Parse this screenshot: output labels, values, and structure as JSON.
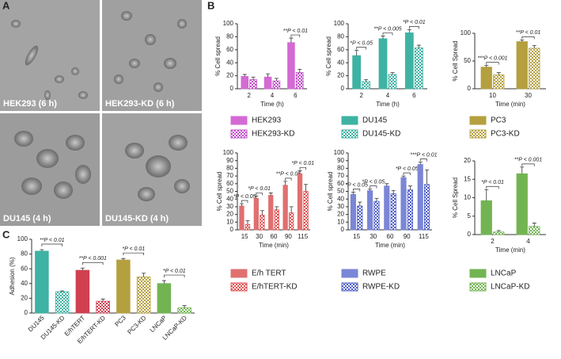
{
  "panel_labels": [
    "A",
    "B",
    "C"
  ],
  "images": [
    {
      "label": "HEK293 (6 h)"
    },
    {
      "label": "HEK293-KD (6 h)"
    },
    {
      "label": "DU145 (4 h)"
    },
    {
      "label": "DU145-KD (4 h)"
    }
  ],
  "chart_data": [
    {
      "type": "bar",
      "xlabel": "Time (h)",
      "ylabel": "% Cell spread",
      "categories": [
        "2",
        "4",
        "6"
      ],
      "series": [
        {
          "name": "HEK293",
          "color": "#d46ad4",
          "hatched": false,
          "values": [
            19,
            18,
            71
          ],
          "errors": [
            3,
            5,
            7
          ]
        },
        {
          "name": "HEK293-KD",
          "color": "#c050c8",
          "hatched": true,
          "values": [
            14,
            12,
            25
          ],
          "errors": [
            4,
            4,
            5
          ]
        }
      ],
      "annotations": [
        null,
        null,
        "**P < 0.01"
      ],
      "ylim": [
        0,
        100
      ],
      "yticks": [
        0,
        20,
        40,
        60,
        80,
        100
      ]
    },
    {
      "type": "bar",
      "xlabel": "Time (h)",
      "ylabel": "% Cell spread",
      "categories": [
        "2",
        "4",
        "6"
      ],
      "series": [
        {
          "name": "DU145",
          "color": "#3fb3a3",
          "hatched": false,
          "values": [
            51,
            77,
            86
          ],
          "errors": [
            8,
            4,
            5
          ]
        },
        {
          "name": "DU145-KD",
          "color": "#3fb3a3",
          "hatched": true,
          "values": [
            11,
            22,
            63
          ],
          "errors": [
            3,
            3,
            4
          ]
        }
      ],
      "annotations": [
        "*P < 0.05",
        "**P < 0.005",
        "*P < 0.01"
      ],
      "ylim": [
        0,
        100
      ],
      "yticks": [
        0,
        20,
        40,
        60,
        80,
        100
      ]
    },
    {
      "type": "bar",
      "xlabel": "Time (min)",
      "ylabel": "% Cell Spread",
      "categories": [
        "10",
        "30"
      ],
      "series": [
        {
          "name": "PC3",
          "color": "#b5a040",
          "hatched": false,
          "values": [
            39,
            85
          ],
          "errors": [
            3,
            3
          ]
        },
        {
          "name": "PC3-KD",
          "color": "#b5a040",
          "hatched": true,
          "values": [
            25,
            73
          ],
          "errors": [
            4,
            5
          ]
        }
      ],
      "annotations": [
        "***P < 0.001",
        "**P < 0.01"
      ],
      "ylim": [
        0,
        100
      ],
      "yticks": [
        0,
        50,
        100
      ]
    },
    {
      "type": "bar",
      "xlabel": "Time (min)",
      "ylabel": "% Cell spread",
      "categories": [
        "15",
        "30",
        "60",
        "90",
        "115"
      ],
      "series": [
        {
          "name": "E/h TERT",
          "color": "#e07070",
          "hatched": false,
          "values": [
            31,
            41,
            45,
            58,
            73
          ],
          "errors": [
            3,
            3,
            3,
            5,
            4
          ]
        },
        {
          "name": "E/hTERT-KD",
          "color": "#e05050",
          "hatched": true,
          "values": [
            7,
            19,
            26,
            22,
            50
          ],
          "errors": [
            5,
            6,
            4,
            8,
            9
          ]
        }
      ],
      "annotations": [
        "*P < 0.05",
        "*P < 0.01",
        null,
        "**P < 0.05",
        "*P < 0.01"
      ],
      "ylim": [
        0,
        100
      ],
      "yticks": [
        0,
        10,
        20,
        30,
        40,
        50,
        60,
        70,
        80,
        90,
        100
      ]
    },
    {
      "type": "bar",
      "xlabel": "Time (min)",
      "ylabel": "% Cell spread",
      "categories": [
        "15",
        "30",
        "60",
        "90",
        "115"
      ],
      "series": [
        {
          "name": "RWPE",
          "color": "#7a86d6",
          "hatched": false,
          "values": [
            46,
            51,
            57,
            68,
            85
          ],
          "errors": [
            3,
            2,
            3,
            2,
            3
          ]
        },
        {
          "name": "RWPE-KD",
          "color": "#5060c8",
          "hatched": true,
          "values": [
            31,
            37,
            47,
            52,
            59
          ],
          "errors": [
            5,
            4,
            4,
            5,
            19
          ]
        }
      ],
      "annotations": [
        "*P < 0.05",
        "*P < 0.05",
        null,
        "*P < 0.05",
        "***P < 0.01"
      ],
      "ylim": [
        0,
        100
      ],
      "yticks": [
        0,
        10,
        20,
        30,
        40,
        50,
        60,
        70,
        80,
        90,
        100
      ]
    },
    {
      "type": "bar",
      "xlabel": "Time (min)",
      "ylabel": "% Cell Spread",
      "categories": [
        "2",
        "4"
      ],
      "series": [
        {
          "name": "LNCaP",
          "color": "#72b452",
          "hatched": false,
          "values": [
            9.2,
            16.5
          ],
          "errors": [
            3,
            1.8
          ]
        },
        {
          "name": "LNCaP-KD",
          "color": "#72b452",
          "hatched": true,
          "values": [
            0.7,
            2.2
          ],
          "errors": [
            0.4,
            0.9
          ]
        }
      ],
      "annotations": [
        "*P < 0.01",
        "**P < 0.001"
      ],
      "ylim": [
        0,
        20
      ],
      "yticks": [
        0,
        5,
        10,
        15,
        20
      ]
    },
    {
      "type": "bar",
      "ylabel": "Adhesion (%)",
      "categories": [
        "DU145",
        "DU145-KD",
        "E/hTERT",
        "E/hTERT-KD",
        "PC3",
        "PC3-KD",
        "LNCaP",
        "LNCaP-KD"
      ],
      "values": [
        84,
        29,
        58,
        16,
        72,
        49,
        40,
        7
      ],
      "errors": [
        2,
        1,
        3,
        3,
        2,
        5,
        4,
        3
      ],
      "colors": [
        "#3fb3a3",
        "#3fb3a3",
        "#d04050",
        "#d04050",
        "#b5a040",
        "#b5a040",
        "#72b452",
        "#72b452"
      ],
      "hatched": [
        false,
        true,
        false,
        true,
        false,
        true,
        false,
        true
      ],
      "annotations": [
        "**P < 0.01",
        null,
        "**P < 0.001",
        null,
        "*P < 0.01",
        null,
        "*P < 0.01",
        null
      ],
      "ylim": [
        0,
        100
      ],
      "yticks": [
        0,
        20,
        40,
        60,
        80,
        100
      ]
    }
  ]
}
